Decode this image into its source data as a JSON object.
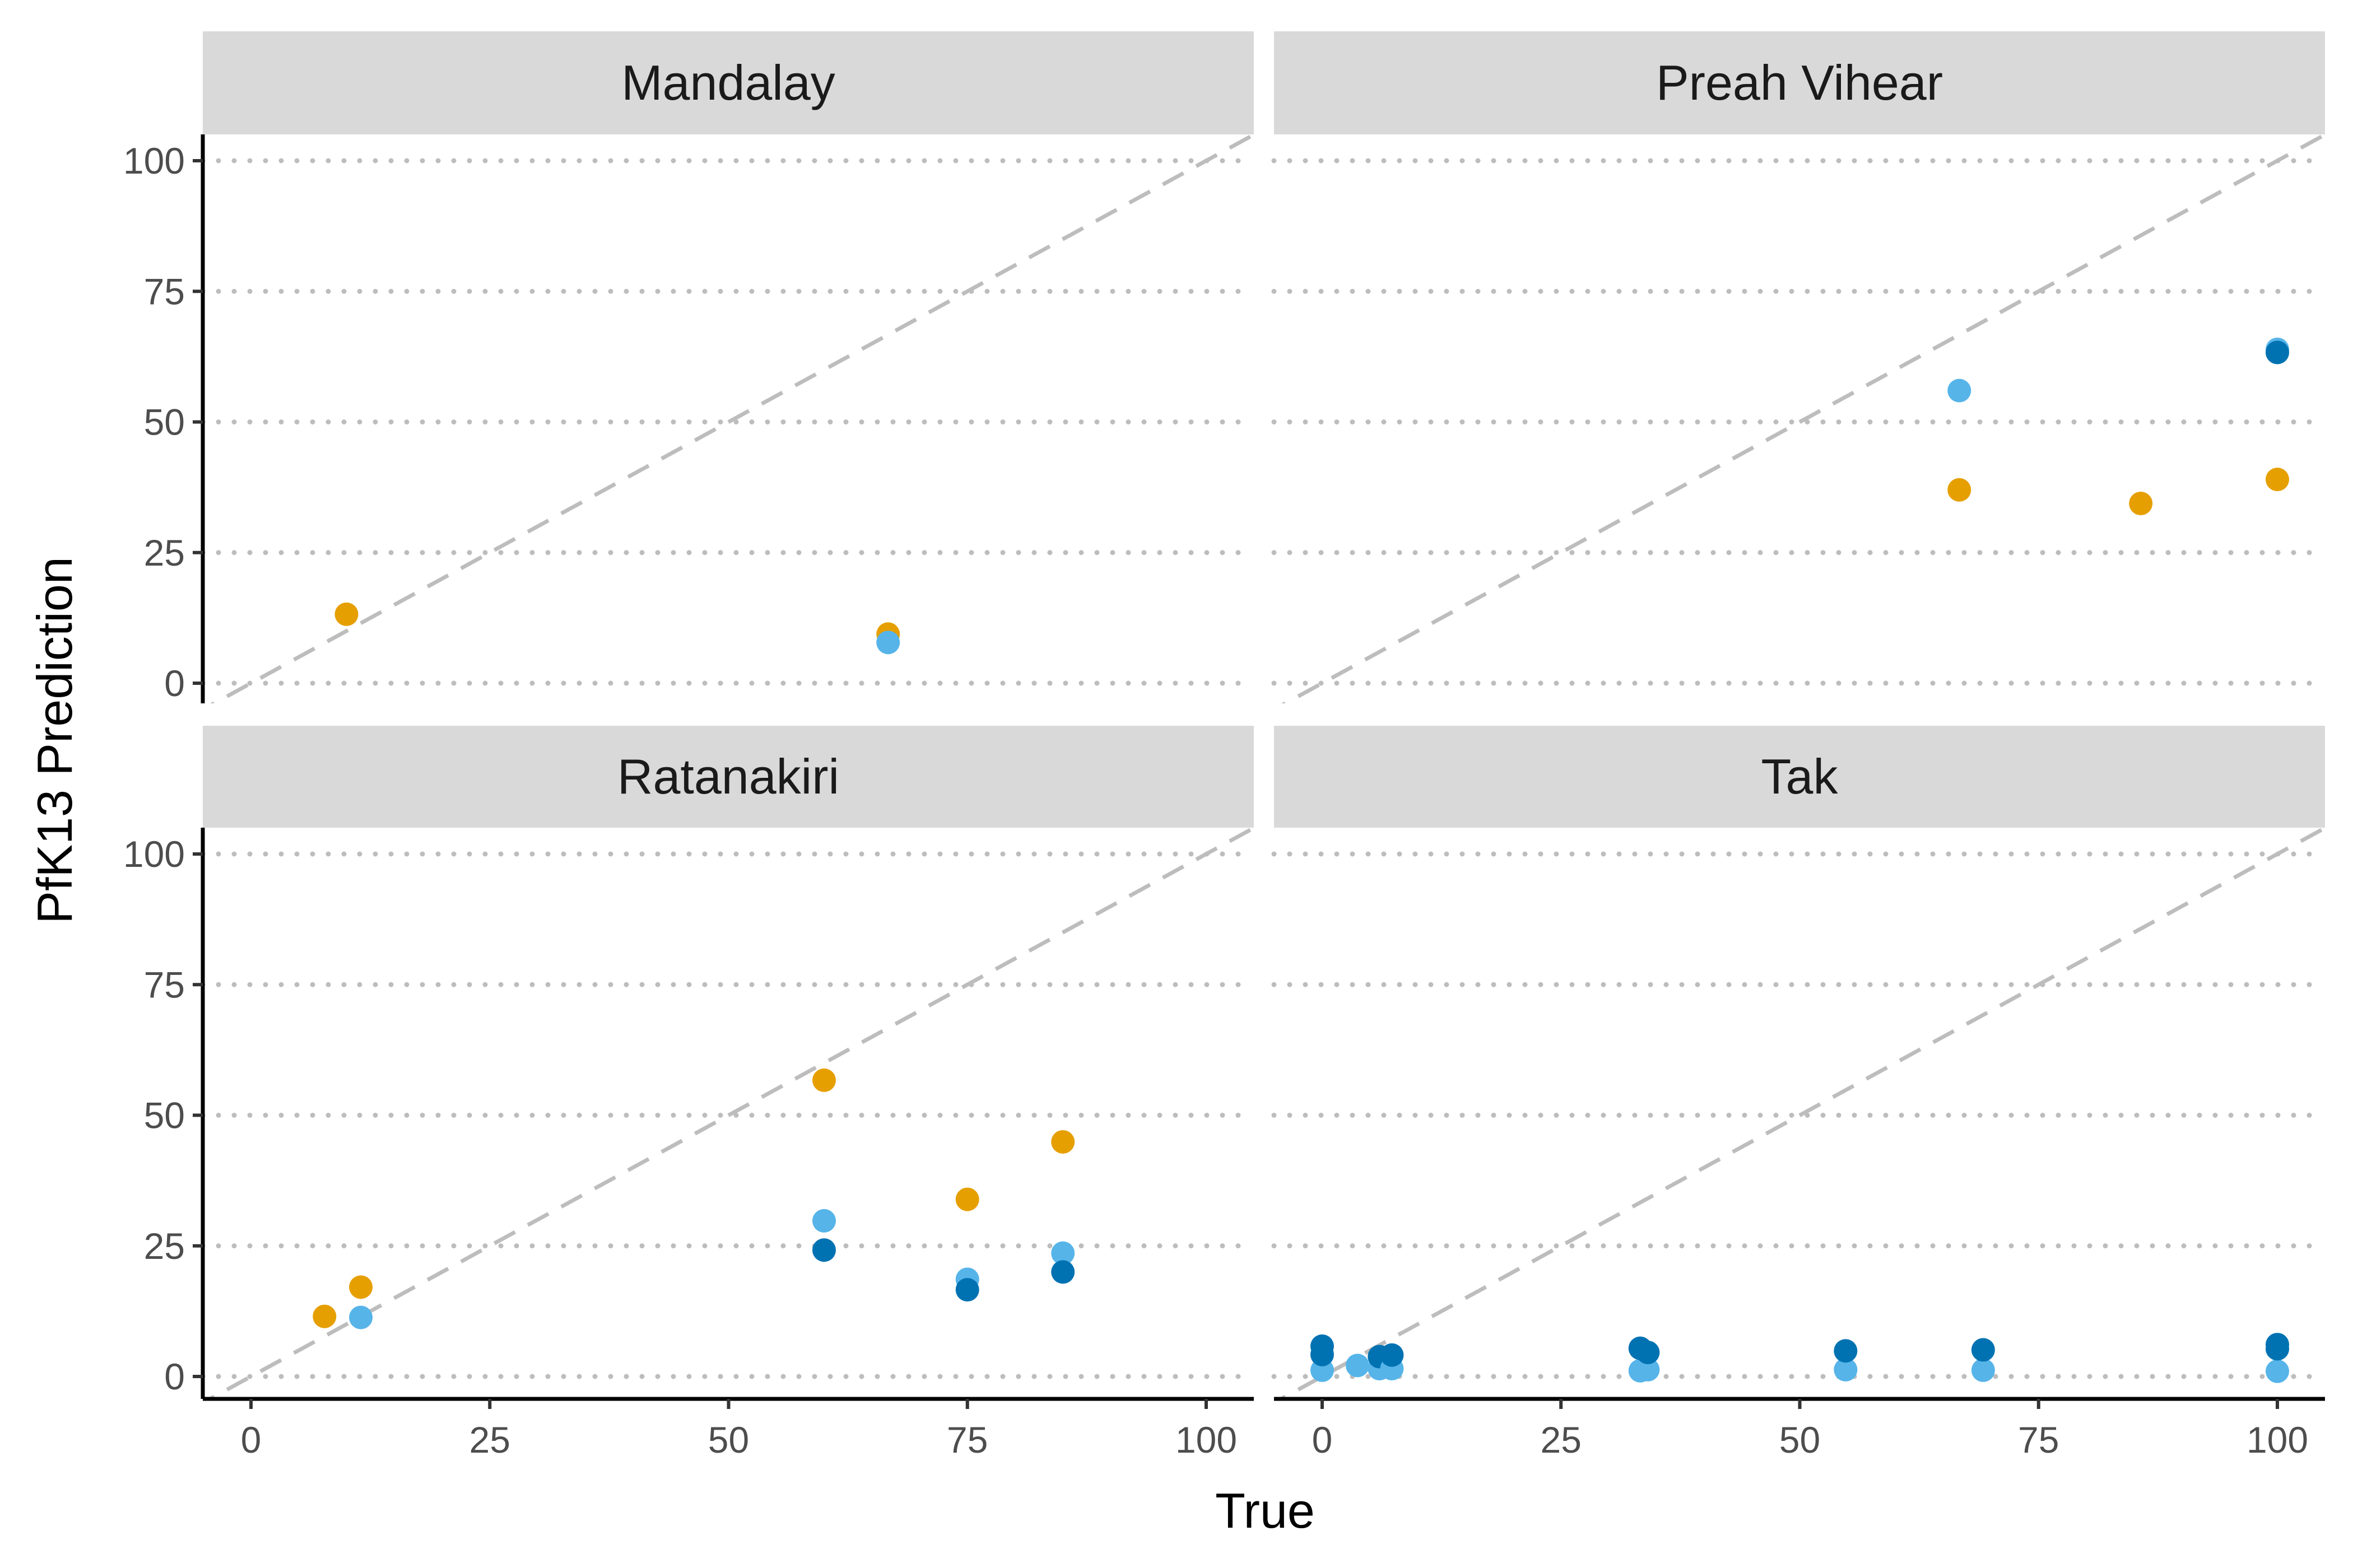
{
  "chart_data": {
    "type": "scatter",
    "facet_layout": "2x2 grid",
    "xlabel": "True",
    "ylabel": "PfK13 Prediction",
    "xlim": [
      0,
      100
    ],
    "ylim": [
      0,
      100
    ],
    "x_ticks": [
      "0",
      "25",
      "50",
      "75",
      "100"
    ],
    "y_ticks": [
      "0",
      "25",
      "50",
      "75",
      "100"
    ],
    "grid": "horizontal dotted",
    "reference_line": "y = x (dashed)",
    "legend": "none",
    "series_colors": {
      "orange": "#E69F00",
      "light_blue": "#56B4E9",
      "dark_blue": "#0072B2"
    },
    "panels": [
      {
        "title": "Mandalay",
        "points": [
          {
            "x": 10,
            "y": 13.2,
            "color": "orange"
          },
          {
            "x": 66.7,
            "y": 9.4,
            "color": "orange"
          },
          {
            "x": 66.7,
            "y": 7.8,
            "color": "light_blue"
          }
        ]
      },
      {
        "title": "Preah Vihear",
        "points": [
          {
            "x": 66.7,
            "y": 56,
            "color": "light_blue"
          },
          {
            "x": 100,
            "y": 63.9,
            "color": "light_blue"
          },
          {
            "x": 100,
            "y": 63.3,
            "color": "dark_blue"
          },
          {
            "x": 66.7,
            "y": 37,
            "color": "orange"
          },
          {
            "x": 85.7,
            "y": 34.4,
            "color": "orange"
          },
          {
            "x": 100,
            "y": 39,
            "color": "orange"
          }
        ]
      },
      {
        "title": "Ratanakiri",
        "points": [
          {
            "x": 7.7,
            "y": 11.5,
            "color": "orange"
          },
          {
            "x": 11.5,
            "y": 17.1,
            "color": "orange"
          },
          {
            "x": 11.5,
            "y": 11.3,
            "color": "light_blue"
          },
          {
            "x": 60,
            "y": 56.7,
            "color": "orange"
          },
          {
            "x": 60,
            "y": 29.8,
            "color": "light_blue"
          },
          {
            "x": 60,
            "y": 24.2,
            "color": "dark_blue"
          },
          {
            "x": 75,
            "y": 33.9,
            "color": "orange"
          },
          {
            "x": 75,
            "y": 18.6,
            "color": "light_blue"
          },
          {
            "x": 75,
            "y": 16.6,
            "color": "dark_blue"
          },
          {
            "x": 85,
            "y": 44.9,
            "color": "orange"
          },
          {
            "x": 85,
            "y": 23.6,
            "color": "light_blue"
          },
          {
            "x": 85,
            "y": 20,
            "color": "dark_blue"
          }
        ]
      },
      {
        "title": "Tak",
        "points": [
          {
            "x": 0,
            "y": 1.2,
            "color": "light_blue"
          },
          {
            "x": 0,
            "y": 4.2,
            "color": "dark_blue"
          },
          {
            "x": 0,
            "y": 5.8,
            "color": "dark_blue"
          },
          {
            "x": 3.7,
            "y": 2.1,
            "color": "light_blue"
          },
          {
            "x": 6,
            "y": 1.5,
            "color": "light_blue"
          },
          {
            "x": 6,
            "y": 3.8,
            "color": "dark_blue"
          },
          {
            "x": 7.3,
            "y": 1.5,
            "color": "light_blue"
          },
          {
            "x": 7.3,
            "y": 4.1,
            "color": "dark_blue"
          },
          {
            "x": 33.3,
            "y": 1.1,
            "color": "light_blue"
          },
          {
            "x": 33.3,
            "y": 5.4,
            "color": "dark_blue"
          },
          {
            "x": 34.1,
            "y": 1.3,
            "color": "light_blue"
          },
          {
            "x": 34.1,
            "y": 4.6,
            "color": "dark_blue"
          },
          {
            "x": 54.8,
            "y": 1.3,
            "color": "light_blue"
          },
          {
            "x": 54.8,
            "y": 4.9,
            "color": "dark_blue"
          },
          {
            "x": 69.2,
            "y": 1.2,
            "color": "light_blue"
          },
          {
            "x": 69.2,
            "y": 5.1,
            "color": "dark_blue"
          },
          {
            "x": 100,
            "y": 1,
            "color": "light_blue"
          },
          {
            "x": 100,
            "y": 5.3,
            "color": "dark_blue"
          },
          {
            "x": 100,
            "y": 6.1,
            "color": "dark_blue"
          }
        ]
      }
    ]
  }
}
